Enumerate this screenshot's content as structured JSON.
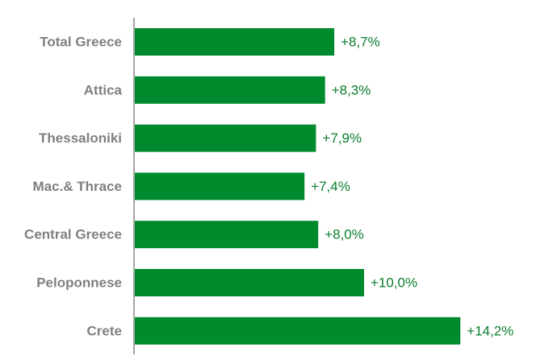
{
  "chart_data": {
    "type": "bar",
    "orientation": "horizontal",
    "categories": [
      "Total Greece",
      "Attica",
      "Thessaloniki",
      "Mac.& Thrace",
      "Central Greece",
      "Peloponnese",
      "Crete"
    ],
    "values": [
      8.7,
      8.3,
      7.9,
      7.4,
      8.0,
      10.0,
      14.2
    ],
    "data_labels": [
      "+8,7%",
      "+8,3%",
      "+7,9%",
      "+7,4%",
      "+8,0%",
      "+10,0%",
      "+14,2%"
    ],
    "title": "",
    "xlabel": "",
    "ylabel": "",
    "xlim": [
      0,
      17.5
    ],
    "grid": false,
    "legend": "none",
    "colors": {
      "bar": "#008a2e",
      "value_text": "#0a7d2c",
      "category_text": "#7f7f7f",
      "axis": "#a6a6a6"
    }
  }
}
